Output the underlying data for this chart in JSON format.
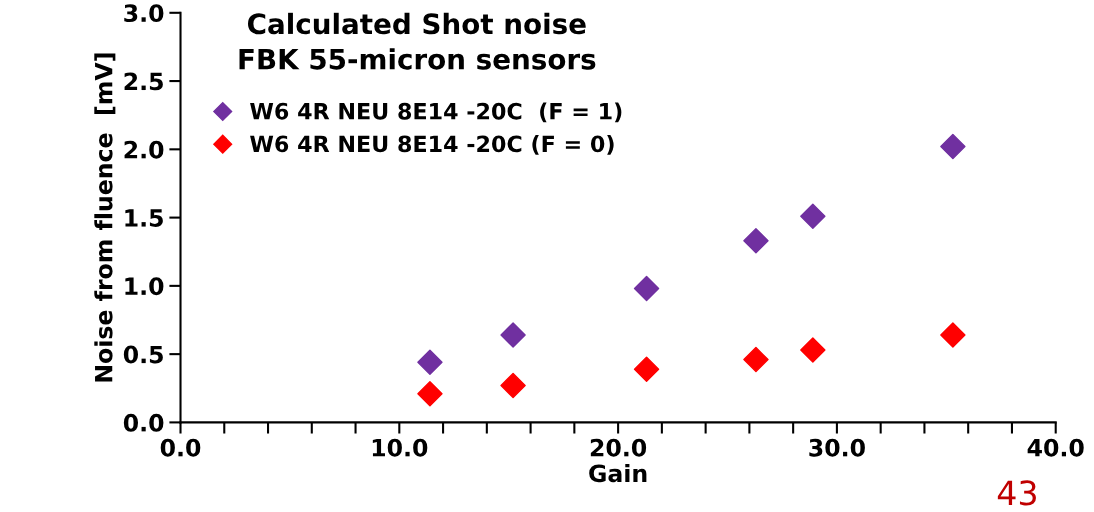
{
  "chart_data": {
    "type": "scatter",
    "title": "Calculated Shot noise\nFBK 55-micron sensors",
    "xlabel": "Gain",
    "ylabel": "Noise from fluence  [mV]",
    "x": [
      11.4,
      15.2,
      21.3,
      26.3,
      28.9,
      35.3
    ],
    "series": [
      {
        "name": "W6 4R NEU 8E14 -20C  (F = 1)",
        "color": "#7030a0",
        "values": [
          0.44,
          0.64,
          0.98,
          1.33,
          1.51,
          2.02
        ]
      },
      {
        "name": "W6 4R NEU 8E14 -20C (F = 0)",
        "color": "#ff0000",
        "values": [
          0.21,
          0.27,
          0.39,
          0.46,
          0.53,
          0.64
        ]
      }
    ],
    "marker": "diamond",
    "legend": "top left",
    "grid": false,
    "xlim": [
      0,
      40
    ],
    "ylim": [
      0,
      3
    ],
    "xticks": [
      {
        "value": 0,
        "label": "0.0"
      },
      {
        "value": 2,
        "label": null
      },
      {
        "value": 4,
        "label": null
      },
      {
        "value": 6,
        "label": null
      },
      {
        "value": 8,
        "label": null
      },
      {
        "value": 10,
        "label": "10.0"
      },
      {
        "value": 12,
        "label": null
      },
      {
        "value": 14,
        "label": null
      },
      {
        "value": 16,
        "label": null
      },
      {
        "value": 18,
        "label": null
      },
      {
        "value": 20,
        "label": "20.0"
      },
      {
        "value": 22,
        "label": null
      },
      {
        "value": 24,
        "label": null
      },
      {
        "value": 26,
        "label": null
      },
      {
        "value": 28,
        "label": null
      },
      {
        "value": 30,
        "label": "30.0"
      },
      {
        "value": 32,
        "label": null
      },
      {
        "value": 34,
        "label": null
      },
      {
        "value": 36,
        "label": null
      },
      {
        "value": 38,
        "label": null
      },
      {
        "value": 40,
        "label": "40.0"
      }
    ],
    "yticks": [
      {
        "value": 0,
        "label": "0.0"
      },
      {
        "value": 0.5,
        "label": "0.5"
      },
      {
        "value": 1,
        "label": "1.0"
      },
      {
        "value": 1.5,
        "label": "1.5"
      },
      {
        "value": 2,
        "label": "2.0"
      },
      {
        "value": 2.5,
        "label": "2.5"
      },
      {
        "value": 3,
        "label": "3.0"
      }
    ],
    "annotations": [
      "43"
    ]
  }
}
